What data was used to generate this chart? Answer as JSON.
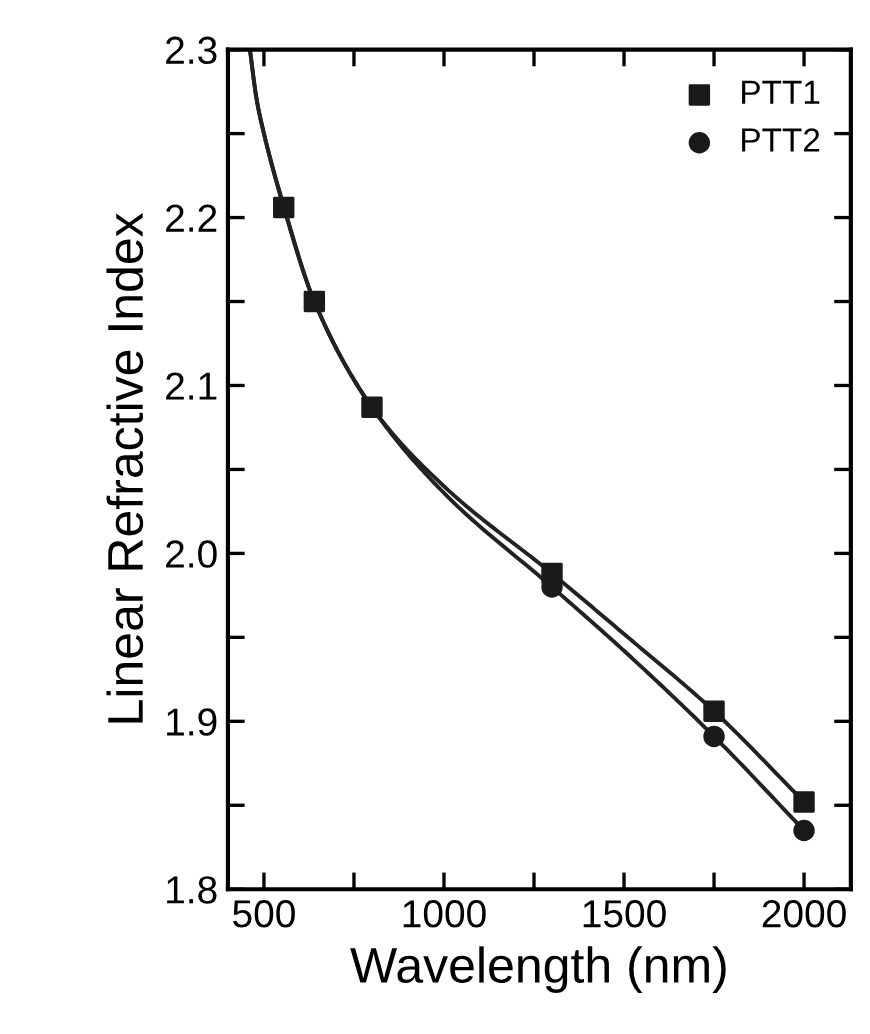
{
  "chart_data": {
    "type": "scatter",
    "xlabel": "Wavelength (nm)",
    "ylabel": "Linear Refractive Index",
    "xlim": [
      400,
      2130
    ],
    "ylim": [
      1.8,
      2.3
    ],
    "xticks": [
      500,
      {
        "value": 750,
        "label": null
      },
      1000,
      {
        "value": 1250,
        "label": null
      },
      1500,
      {
        "value": 1750,
        "label": null
      },
      2000
    ],
    "yticks": [
      1.8,
      {
        "value": 1.85,
        "label": null
      },
      1.9,
      {
        "value": 1.95,
        "label": null
      },
      {
        "value": 2.0,
        "label": "2.0"
      },
      {
        "value": 2.05,
        "label": null
      },
      2.1,
      {
        "value": 2.15,
        "label": null
      },
      2.2,
      {
        "value": 2.25,
        "label": null
      },
      2.3
    ],
    "grid": false,
    "legend": "top right",
    "series": [
      {
        "name": "PTT1",
        "marker": "square",
        "color": "#1a1a1a",
        "x": [
          555,
          640,
          800,
          1300,
          1750,
          2000
        ],
        "values": [
          2.206,
          2.15,
          2.087,
          1.988,
          1.906,
          1.852
        ]
      },
      {
        "name": "PTT2",
        "marker": "circle",
        "color": "#1a1a1a",
        "x": [
          1300,
          1750,
          2000
        ],
        "values": [
          1.98,
          1.891,
          1.835
        ]
      },
      {
        "type": "line",
        "marker": "none",
        "line_style": "solid",
        "color": "#222222",
        "x": [
          461,
          480,
          500,
          555,
          640,
          800,
          1000,
          1300,
          1500,
          1750,
          2000
        ],
        "values": [
          2.3,
          2.27,
          2.25,
          2.206,
          2.15,
          2.087,
          2.04,
          1.988,
          1.952,
          1.906,
          1.852
        ]
      },
      {
        "type": "line",
        "marker": "none",
        "line_style": "solid",
        "color": "#222222",
        "x": [
          461,
          480,
          500,
          555,
          640,
          800,
          1000,
          1300,
          1500,
          1750,
          2000
        ],
        "values": [
          2.3,
          2.27,
          2.25,
          2.207,
          2.15,
          2.087,
          2.036,
          1.98,
          1.942,
          1.891,
          1.835
        ]
      }
    ]
  }
}
